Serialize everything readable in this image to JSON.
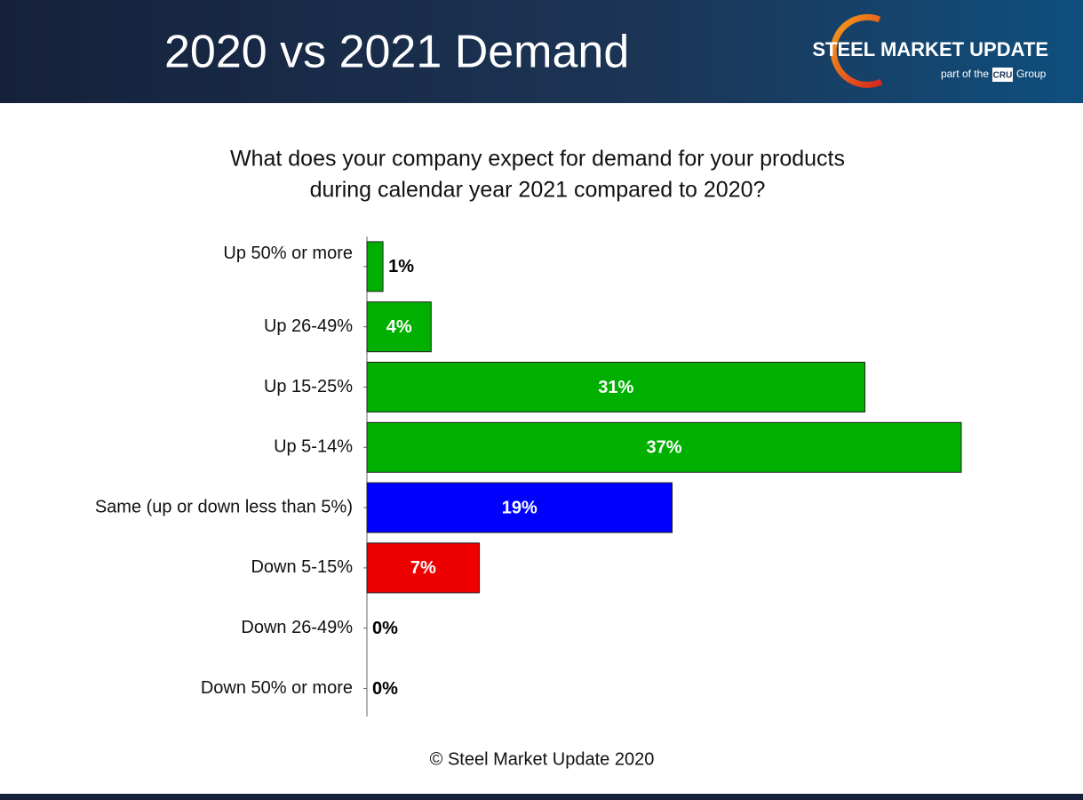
{
  "header": {
    "title": "2020 vs 2021 Demand",
    "logo": {
      "name": "STEEL MARKET UPDATE",
      "tagline_before": "part of the",
      "brand": "CRU",
      "tagline_after": "Group"
    }
  },
  "chart_data": {
    "type": "bar",
    "orientation": "horizontal",
    "title": [
      "What does your company expect for demand for your products",
      "during calendar year 2021 compared to 2020?"
    ],
    "categories": [
      "Up 50% or more",
      "Up 26-49%",
      "Up 15-25%",
      "Up 5-14%",
      "Same (up or down less than 5%)",
      "Down 5-15%",
      "Down 26-49%",
      "Down 50% or more"
    ],
    "values": [
      1,
      4,
      31,
      37,
      19,
      7,
      0,
      0
    ],
    "value_labels": [
      "1%",
      "4%",
      "31%",
      "37%",
      "19%",
      "7%",
      "0%",
      "0%"
    ],
    "colors": [
      "#00b000",
      "#00b000",
      "#00b000",
      "#00b000",
      "#0000ff",
      "#ee0000",
      "#00b000",
      "#00b000"
    ]
  },
  "footer": "© Steel Market Update 2020"
}
